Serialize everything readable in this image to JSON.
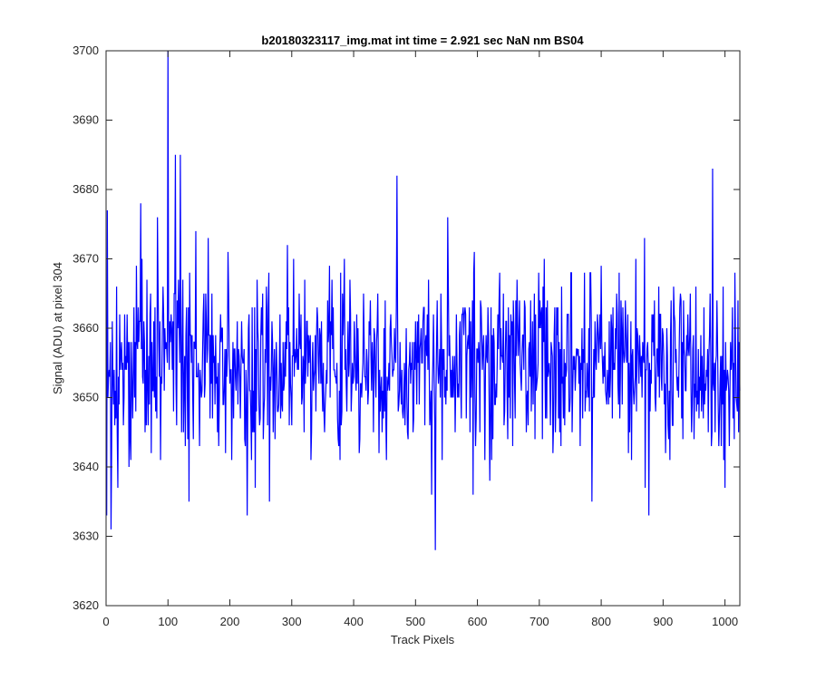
{
  "chart_data": {
    "type": "line",
    "title": "b20180323117_img.mat int time = 2.921 sec  NaN nm BS04",
    "xlabel": "Track Pixels",
    "ylabel": "Signal (ADU) at pixel 304",
    "xlim": [
      0,
      1024
    ],
    "ylim": [
      3620,
      3700
    ],
    "xticks": [
      0,
      100,
      200,
      300,
      400,
      500,
      600,
      700,
      800,
      900,
      1000
    ],
    "yticks": [
      3620,
      3630,
      3640,
      3650,
      3660,
      3670,
      3680,
      3690,
      3700
    ],
    "grid": false,
    "line_color": "#0000ff",
    "baseline": 3655,
    "point_count": 1024,
    "notable_points": [
      {
        "x": 1,
        "y": 3633
      },
      {
        "x": 2,
        "y": 3677
      },
      {
        "x": 8,
        "y": 3631
      },
      {
        "x": 19,
        "y": 3637
      },
      {
        "x": 40,
        "y": 3641
      },
      {
        "x": 56,
        "y": 3678
      },
      {
        "x": 73,
        "y": 3642
      },
      {
        "x": 100,
        "y": 3700
      },
      {
        "x": 112,
        "y": 3685
      },
      {
        "x": 120,
        "y": 3685
      },
      {
        "x": 134,
        "y": 3635
      },
      {
        "x": 228,
        "y": 3633
      },
      {
        "x": 470,
        "y": 3682
      },
      {
        "x": 532,
        "y": 3628
      },
      {
        "x": 877,
        "y": 3633
      },
      {
        "x": 980,
        "y": 3683
      },
      {
        "x": 1000,
        "y": 3637
      },
      {
        "x": 1020,
        "y": 3648
      }
    ]
  }
}
